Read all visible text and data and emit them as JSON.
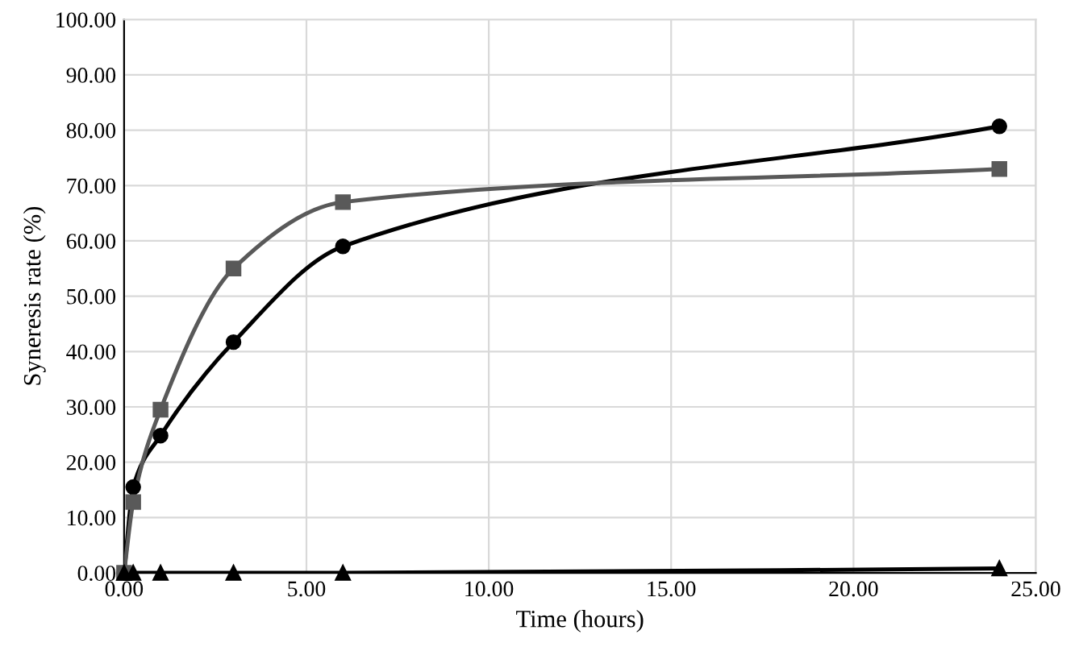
{
  "chart_data": {
    "type": "line",
    "xlabel": "Time (hours)",
    "ylabel": "Syneresis rate (%)",
    "xlim": [
      0,
      25
    ],
    "xticks": [
      {
        "value": 0,
        "label": "0.00"
      },
      {
        "value": 5,
        "label": "5.00"
      },
      {
        "value": 10,
        "label": "10.00"
      },
      {
        "value": 15,
        "label": "15.00"
      },
      {
        "value": 20,
        "label": "20.00"
      },
      {
        "value": 25,
        "label": "25.00"
      }
    ],
    "ylim": [
      0,
      100
    ],
    "yticks": [
      {
        "value": 0,
        "label": "0.00"
      },
      {
        "value": 10,
        "label": "10.00"
      },
      {
        "value": 20,
        "label": "20.00"
      },
      {
        "value": 30,
        "label": "30.00"
      },
      {
        "value": 40,
        "label": "40.00"
      },
      {
        "value": 50,
        "label": "50.00"
      },
      {
        "value": 60,
        "label": "60.00"
      },
      {
        "value": 70,
        "label": "70.00"
      },
      {
        "value": 80,
        "label": "80.00"
      },
      {
        "value": 90,
        "label": "90.00"
      },
      {
        "value": 100,
        "label": "100.00"
      }
    ],
    "grid": true,
    "legend": false,
    "series": [
      {
        "color": "#000000",
        "marker": "circle",
        "x": [
          0,
          0.25,
          1,
          3,
          6,
          24
        ],
        "values": [
          0,
          15.5,
          24.8,
          41.7,
          59,
          80.7
        ]
      },
      {
        "color": "#595959",
        "marker": "square",
        "x": [
          0,
          0.25,
          1,
          3,
          6,
          24
        ],
        "values": [
          0,
          12.8,
          29.5,
          55,
          67,
          73
        ]
      },
      {
        "color": "#000000",
        "marker": "triangle",
        "x": [
          0,
          0.25,
          1,
          3,
          6,
          24
        ],
        "values": [
          0,
          0,
          0,
          0,
          0,
          0.8
        ]
      }
    ]
  }
}
